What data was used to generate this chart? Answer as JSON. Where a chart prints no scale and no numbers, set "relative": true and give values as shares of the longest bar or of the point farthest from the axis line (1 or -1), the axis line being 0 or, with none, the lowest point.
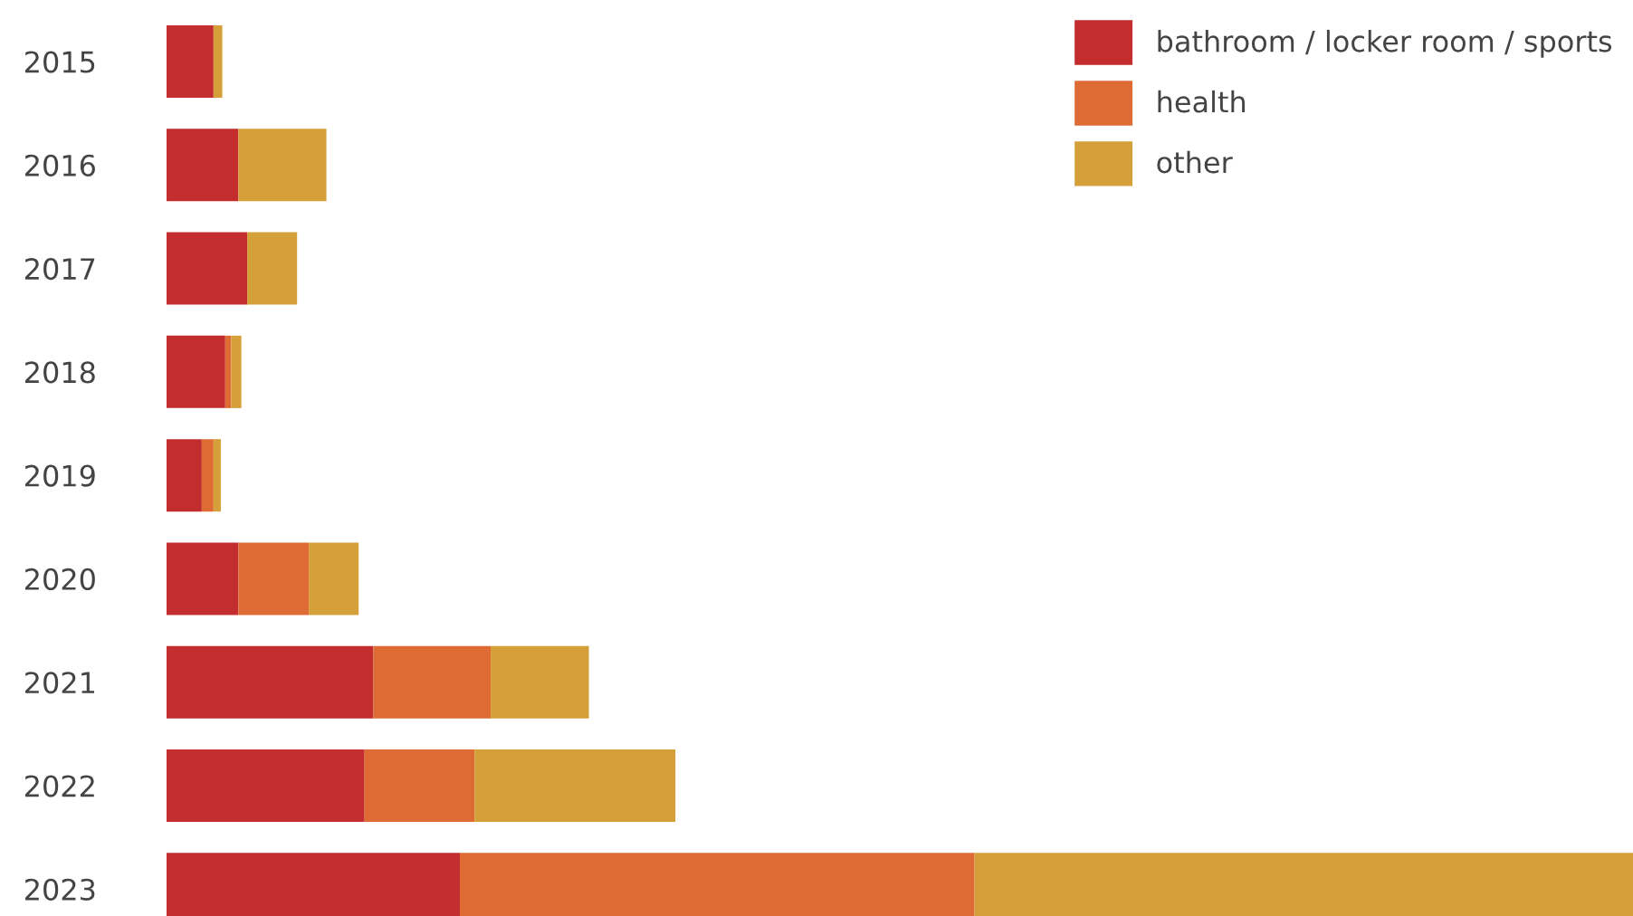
{
  "chart_data": {
    "type": "bar",
    "orientation": "horizontal",
    "stacked": true,
    "relative": true,
    "categories": [
      "2015",
      "2016",
      "2017",
      "2018",
      "2019",
      "2020",
      "2021",
      "2022",
      "2023"
    ],
    "series": [
      {
        "name": "bathroom / locker room / sports",
        "color": "#c32d2e",
        "values": [
          0.032,
          0.049,
          0.055,
          0.04,
          0.024,
          0.049,
          0.141,
          0.135,
          0.2
        ]
      },
      {
        "name": "health",
        "color": "#df6b34",
        "values": [
          0,
          0,
          0,
          0.004,
          0.008,
          0.048,
          0.08,
          0.075,
          0.351
        ]
      },
      {
        "name": "other",
        "color": "#d5a03a",
        "values": [
          0.006,
          0.06,
          0.034,
          0.007,
          0.005,
          0.034,
          0.067,
          0.137,
          0.449
        ]
      }
    ],
    "legend": "top right"
  }
}
